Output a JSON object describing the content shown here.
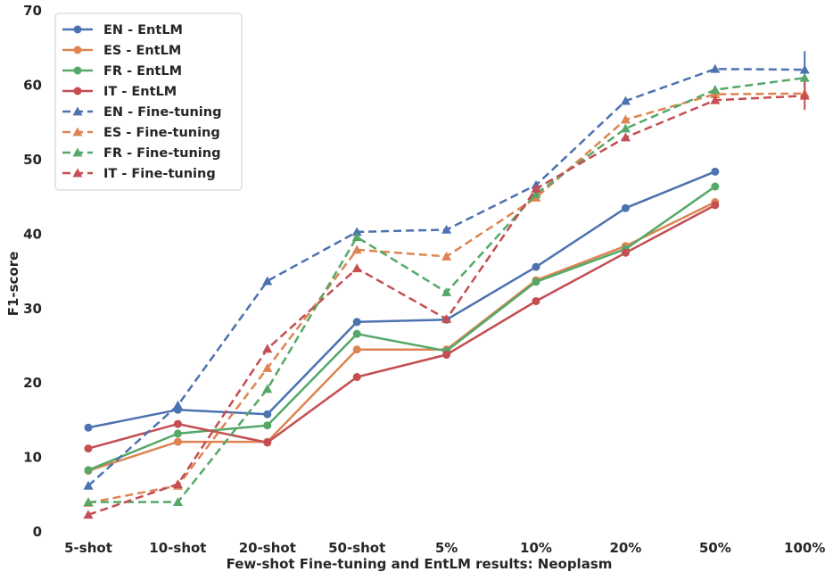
{
  "chart_data": {
    "type": "line",
    "title": "",
    "xlabel": "Few-shot Fine-tuning and EntLM results: Neoplasm",
    "ylabel": "F1-score",
    "categories": [
      "5-shot",
      "10-shot",
      "20-shot",
      "50-shot",
      "5%",
      "10%",
      "20%",
      "50%",
      "100%"
    ],
    "ylim": [
      0,
      70
    ],
    "yticks": [
      0,
      10,
      20,
      30,
      40,
      50,
      60,
      70
    ],
    "grid": false,
    "legend_position": "top-left",
    "series": [
      {
        "name": "EN - EntLM",
        "color": "#4c72b0",
        "style": "solid",
        "marker": "circle",
        "values": [
          14.0,
          16.4,
          15.8,
          28.2,
          28.5,
          35.6,
          43.5,
          48.4,
          null
        ]
      },
      {
        "name": "ES - EntLM",
        "color": "#dd8452",
        "style": "solid",
        "marker": "circle",
        "values": [
          8.2,
          12.1,
          12.1,
          24.5,
          24.5,
          33.8,
          38.4,
          44.3,
          null
        ]
      },
      {
        "name": "FR - EntLM",
        "color": "#55a868",
        "style": "solid",
        "marker": "circle",
        "values": [
          8.3,
          13.2,
          14.3,
          26.6,
          24.3,
          33.6,
          38.0,
          46.4,
          null
        ]
      },
      {
        "name": "IT - EntLM",
        "color": "#c44e52",
        "style": "solid",
        "marker": "circle",
        "values": [
          11.2,
          14.5,
          12.0,
          20.8,
          23.8,
          31.0,
          37.5,
          43.9,
          null
        ]
      },
      {
        "name": "EN - Fine-tuning",
        "color": "#4c72b0",
        "style": "dashed",
        "marker": "triangle",
        "values": [
          6.2,
          17.0,
          33.7,
          40.3,
          40.6,
          46.6,
          57.9,
          62.2,
          62.1
        ],
        "error_last": 2.5
      },
      {
        "name": "ES - Fine-tuning",
        "color": "#dd8452",
        "style": "dashed",
        "marker": "triangle",
        "values": [
          3.9,
          6.2,
          22.0,
          37.9,
          37.0,
          44.9,
          55.4,
          58.8,
          58.9
        ]
      },
      {
        "name": "FR - Fine-tuning",
        "color": "#55a868",
        "style": "dashed",
        "marker": "triangle",
        "values": [
          4.0,
          4.0,
          19.2,
          39.6,
          32.2,
          45.4,
          54.2,
          59.4,
          61.0
        ]
      },
      {
        "name": "IT - Fine-tuning",
        "color": "#c44e52",
        "style": "dashed",
        "marker": "triangle",
        "values": [
          2.3,
          6.4,
          24.6,
          35.4,
          28.6,
          46.1,
          53.0,
          58.0,
          58.6
        ],
        "error_last": 1.9
      }
    ]
  }
}
